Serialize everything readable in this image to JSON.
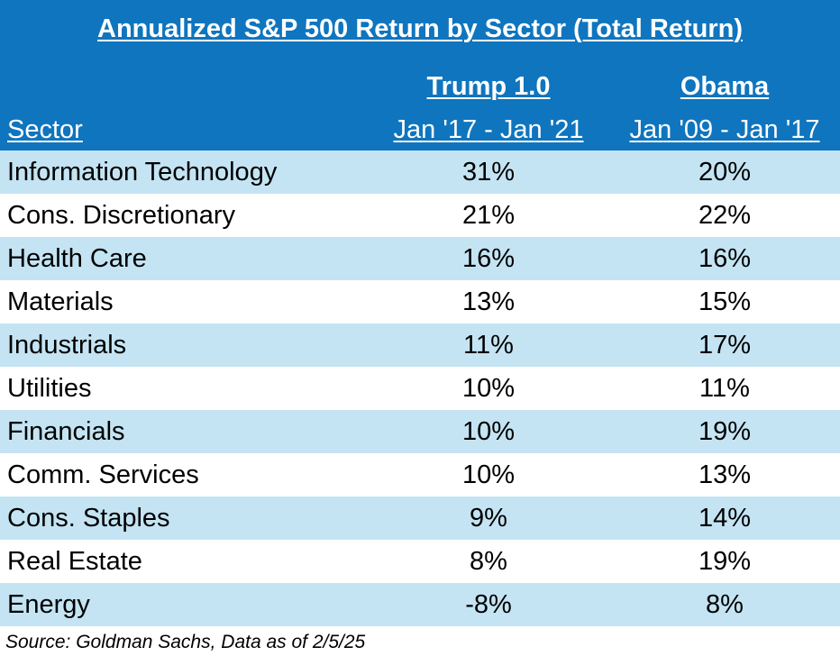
{
  "chart_data": {
    "type": "table",
    "title": "Annualized S&P 500 Return by Sector (Total Return)",
    "header": {
      "sector_label": "Sector",
      "columns": [
        {
          "name": "Trump 1.0",
          "range": "Jan '17 - Jan '21"
        },
        {
          "name": "Obama",
          "range": "Jan '09 - Jan '17"
        }
      ]
    },
    "rows": [
      {
        "sector": "Information Technology",
        "trump": "31%",
        "obama": "20%"
      },
      {
        "sector": "Cons. Discretionary",
        "trump": "21%",
        "obama": "22%"
      },
      {
        "sector": "Health Care",
        "trump": "16%",
        "obama": "16%"
      },
      {
        "sector": "Materials",
        "trump": "13%",
        "obama": "15%"
      },
      {
        "sector": "Industrials",
        "trump": "11%",
        "obama": "17%"
      },
      {
        "sector": "Utilities",
        "trump": "10%",
        "obama": "11%"
      },
      {
        "sector": "Financials",
        "trump": "10%",
        "obama": "19%"
      },
      {
        "sector": "Comm. Services",
        "trump": "10%",
        "obama": "13%"
      },
      {
        "sector": "Cons. Staples",
        "trump": "9%",
        "obama": "14%"
      },
      {
        "sector": "Real Estate",
        "trump": "8%",
        "obama": "19%"
      },
      {
        "sector": "Energy",
        "trump": "-8%",
        "obama": "8%"
      }
    ],
    "source": "Source: Goldman Sachs, Data as of 2/5/25"
  },
  "colors": {
    "header_bg": "#0f75be",
    "row_shade": "#c4e4f3",
    "row_plain": "#ffffff",
    "header_text": "#ffffff",
    "body_text": "#000000"
  }
}
